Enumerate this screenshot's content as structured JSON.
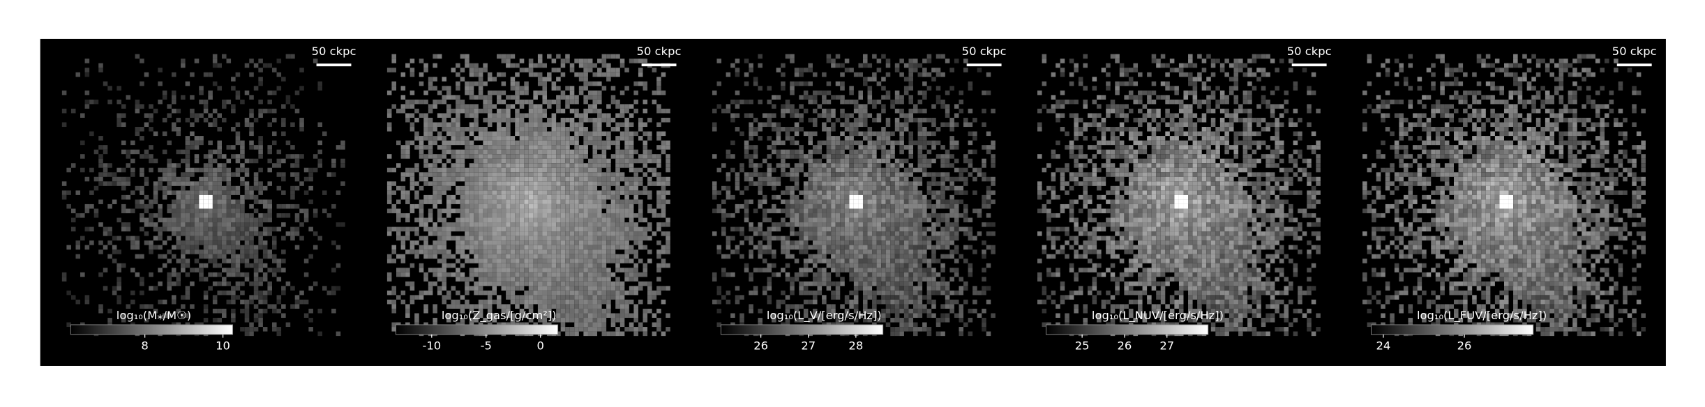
{
  "chart_data": [
    {
      "type": "image",
      "annotation": "50 ckpc",
      "title": "log₁₀(M⁎/M☉)",
      "xlim": [
        6.1,
        10.25
      ],
      "xticks": [
        8,
        10
      ],
      "brightness": 0.55,
      "spread": 1.0
    },
    {
      "type": "image",
      "annotation": "50 ckpc",
      "title": "log₁₀(Z_gas/[g/cm²])",
      "xlim": [
        -13.3,
        1.6
      ],
      "xticks": [
        -10,
        -5,
        0
      ],
      "brightness": 0.8,
      "spread": 1.5
    },
    {
      "type": "image",
      "annotation": "50 ckpc",
      "title": "log₁₀(L_V/[erg/s/Hz])",
      "xlim": [
        25.16,
        28.57
      ],
      "xticks": [
        26,
        27,
        28
      ],
      "brightness": 0.7,
      "spread": 1.3
    },
    {
      "type": "image",
      "annotation": "50 ckpc",
      "title": "log₁₀(L_NUV/[erg/s/Hz])",
      "xlim": [
        24.15,
        27.97
      ],
      "xticks": [
        25,
        26,
        27
      ],
      "brightness": 0.85,
      "spread": 1.35
    },
    {
      "type": "image",
      "annotation": "50 ckpc",
      "title": "log₁₀(L_FUV/[erg/s/Hz])",
      "xlim": [
        23.7,
        27.7
      ],
      "xticks": [
        24,
        26
      ],
      "brightness": 0.85,
      "spread": 1.35
    }
  ]
}
